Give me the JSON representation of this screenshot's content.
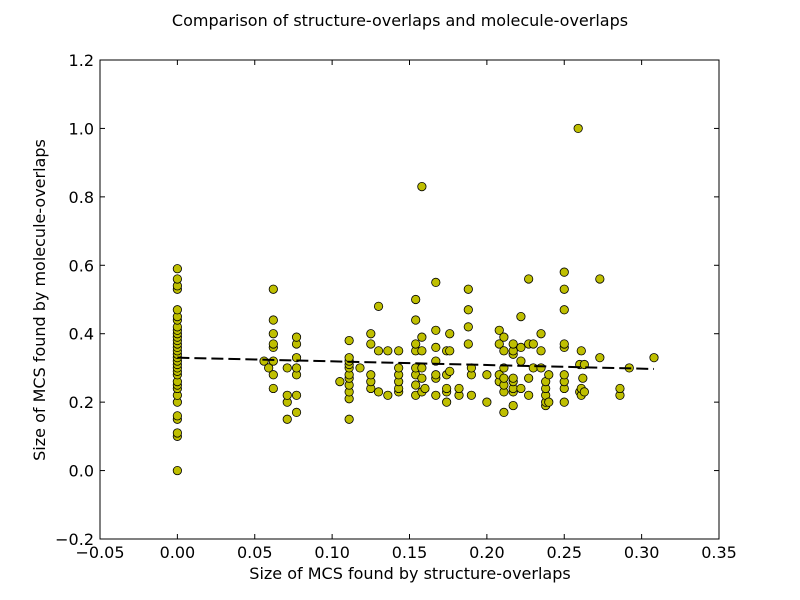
{
  "chart_data": {
    "type": "scatter",
    "title": "Comparison of structure-overlaps and molecule-overlaps",
    "xlabel": "Size of MCS found by structure-overlaps",
    "ylabel": "Size of MCS found by molecule-overlaps",
    "xlim": [
      -0.05,
      0.35
    ],
    "ylim": [
      -0.2,
      1.2
    ],
    "xticks": [
      -0.05,
      0.0,
      0.05,
      0.1,
      0.15,
      0.2,
      0.25,
      0.3,
      0.35
    ],
    "xtick_labels": [
      "−0.05",
      "0.00",
      "0.05",
      "0.10",
      "0.15",
      "0.20",
      "0.25",
      "0.30",
      "0.35"
    ],
    "yticks": [
      -0.2,
      0.0,
      0.2,
      0.4,
      0.6,
      0.8,
      1.0,
      1.2
    ],
    "ytick_labels": [
      "−0.2",
      "0.0",
      "0.2",
      "0.4",
      "0.6",
      "0.8",
      "1.0",
      "1.2"
    ],
    "grid": false,
    "colors": {
      "marker_fill": "#bfbf00",
      "marker_edge": "#000000",
      "trend_line": "#000000"
    },
    "series": [
      {
        "points": [
          [
            0.0,
            0.0
          ],
          [
            0.0,
            0.1
          ],
          [
            0.0,
            0.11
          ],
          [
            0.0,
            0.15
          ],
          [
            0.0,
            0.16
          ],
          [
            0.0,
            0.2
          ],
          [
            0.0,
            0.22
          ],
          [
            0.0,
            0.24
          ],
          [
            0.0,
            0.25
          ],
          [
            0.0,
            0.26
          ],
          [
            0.0,
            0.28
          ],
          [
            0.0,
            0.29
          ],
          [
            0.0,
            0.3
          ],
          [
            0.0,
            0.31
          ],
          [
            0.0,
            0.32
          ],
          [
            0.0,
            0.33
          ],
          [
            0.0,
            0.34
          ],
          [
            0.0,
            0.35
          ],
          [
            0.0,
            0.36
          ],
          [
            0.0,
            0.37
          ],
          [
            0.0,
            0.38
          ],
          [
            0.0,
            0.39
          ],
          [
            0.0,
            0.4
          ],
          [
            0.0,
            0.41
          ],
          [
            0.0,
            0.42
          ],
          [
            0.0,
            0.44
          ],
          [
            0.0,
            0.45
          ],
          [
            0.0,
            0.47
          ],
          [
            0.0,
            0.53
          ],
          [
            0.0,
            0.54
          ],
          [
            0.0,
            0.56
          ],
          [
            0.0,
            0.59
          ],
          [
            0.056,
            0.32
          ],
          [
            0.059,
            0.3
          ],
          [
            0.062,
            0.24
          ],
          [
            0.062,
            0.28
          ],
          [
            0.062,
            0.32
          ],
          [
            0.062,
            0.36
          ],
          [
            0.062,
            0.37
          ],
          [
            0.062,
            0.4
          ],
          [
            0.062,
            0.44
          ],
          [
            0.062,
            0.53
          ],
          [
            0.071,
            0.15
          ],
          [
            0.071,
            0.2
          ],
          [
            0.071,
            0.22
          ],
          [
            0.071,
            0.3
          ],
          [
            0.077,
            0.17
          ],
          [
            0.077,
            0.22
          ],
          [
            0.077,
            0.28
          ],
          [
            0.077,
            0.3
          ],
          [
            0.077,
            0.33
          ],
          [
            0.077,
            0.37
          ],
          [
            0.077,
            0.39
          ],
          [
            0.105,
            0.26
          ],
          [
            0.111,
            0.15
          ],
          [
            0.111,
            0.21
          ],
          [
            0.111,
            0.23
          ],
          [
            0.111,
            0.25
          ],
          [
            0.111,
            0.27
          ],
          [
            0.111,
            0.28
          ],
          [
            0.111,
            0.3
          ],
          [
            0.111,
            0.31
          ],
          [
            0.111,
            0.32
          ],
          [
            0.111,
            0.33
          ],
          [
            0.111,
            0.38
          ],
          [
            0.118,
            0.3
          ],
          [
            0.125,
            0.24
          ],
          [
            0.125,
            0.26
          ],
          [
            0.125,
            0.28
          ],
          [
            0.125,
            0.37
          ],
          [
            0.125,
            0.4
          ],
          [
            0.13,
            0.23
          ],
          [
            0.13,
            0.35
          ],
          [
            0.13,
            0.48
          ],
          [
            0.136,
            0.22
          ],
          [
            0.136,
            0.35
          ],
          [
            0.143,
            0.23
          ],
          [
            0.143,
            0.24
          ],
          [
            0.143,
            0.26
          ],
          [
            0.143,
            0.28
          ],
          [
            0.143,
            0.3
          ],
          [
            0.143,
            0.35
          ],
          [
            0.154,
            0.22
          ],
          [
            0.154,
            0.25
          ],
          [
            0.154,
            0.28
          ],
          [
            0.154,
            0.3
          ],
          [
            0.154,
            0.35
          ],
          [
            0.154,
            0.37
          ],
          [
            0.154,
            0.44
          ],
          [
            0.154,
            0.5
          ],
          [
            0.158,
            0.23
          ],
          [
            0.158,
            0.27
          ],
          [
            0.158,
            0.3
          ],
          [
            0.158,
            0.35
          ],
          [
            0.158,
            0.39
          ],
          [
            0.158,
            0.83
          ],
          [
            0.16,
            0.24
          ],
          [
            0.167,
            0.22
          ],
          [
            0.167,
            0.27
          ],
          [
            0.167,
            0.28
          ],
          [
            0.167,
            0.32
          ],
          [
            0.167,
            0.36
          ],
          [
            0.167,
            0.41
          ],
          [
            0.167,
            0.55
          ],
          [
            0.174,
            0.2
          ],
          [
            0.174,
            0.23
          ],
          [
            0.174,
            0.24
          ],
          [
            0.174,
            0.28
          ],
          [
            0.174,
            0.35
          ],
          [
            0.176,
            0.29
          ],
          [
            0.176,
            0.35
          ],
          [
            0.176,
            0.4
          ],
          [
            0.182,
            0.22
          ],
          [
            0.182,
            0.24
          ],
          [
            0.188,
            0.37
          ],
          [
            0.188,
            0.42
          ],
          [
            0.188,
            0.47
          ],
          [
            0.188,
            0.53
          ],
          [
            0.19,
            0.22
          ],
          [
            0.19,
            0.28
          ],
          [
            0.19,
            0.3
          ],
          [
            0.2,
            0.2
          ],
          [
            0.2,
            0.28
          ],
          [
            0.208,
            0.26
          ],
          [
            0.208,
            0.28
          ],
          [
            0.208,
            0.37
          ],
          [
            0.208,
            0.41
          ],
          [
            0.211,
            0.17
          ],
          [
            0.211,
            0.23
          ],
          [
            0.211,
            0.25
          ],
          [
            0.211,
            0.27
          ],
          [
            0.211,
            0.3
          ],
          [
            0.211,
            0.35
          ],
          [
            0.211,
            0.39
          ],
          [
            0.217,
            0.19
          ],
          [
            0.217,
            0.23
          ],
          [
            0.217,
            0.24
          ],
          [
            0.217,
            0.26
          ],
          [
            0.217,
            0.27
          ],
          [
            0.217,
            0.34
          ],
          [
            0.217,
            0.35
          ],
          [
            0.217,
            0.37
          ],
          [
            0.222,
            0.24
          ],
          [
            0.222,
            0.32
          ],
          [
            0.222,
            0.36
          ],
          [
            0.222,
            0.45
          ],
          [
            0.227,
            0.22
          ],
          [
            0.227,
            0.27
          ],
          [
            0.227,
            0.37
          ],
          [
            0.227,
            0.56
          ],
          [
            0.23,
            0.3
          ],
          [
            0.23,
            0.37
          ],
          [
            0.235,
            0.3
          ],
          [
            0.235,
            0.35
          ],
          [
            0.235,
            0.4
          ],
          [
            0.238,
            0.19
          ],
          [
            0.238,
            0.2
          ],
          [
            0.238,
            0.22
          ],
          [
            0.238,
            0.24
          ],
          [
            0.238,
            0.26
          ],
          [
            0.24,
            0.2
          ],
          [
            0.24,
            0.28
          ],
          [
            0.25,
            0.2
          ],
          [
            0.25,
            0.24
          ],
          [
            0.25,
            0.26
          ],
          [
            0.25,
            0.28
          ],
          [
            0.25,
            0.36
          ],
          [
            0.25,
            0.37
          ],
          [
            0.25,
            0.47
          ],
          [
            0.25,
            0.53
          ],
          [
            0.25,
            0.58
          ],
          [
            0.259,
            1.0
          ],
          [
            0.26,
            0.23
          ],
          [
            0.26,
            0.31
          ],
          [
            0.261,
            0.22
          ],
          [
            0.261,
            0.24
          ],
          [
            0.261,
            0.35
          ],
          [
            0.262,
            0.27
          ],
          [
            0.263,
            0.23
          ],
          [
            0.263,
            0.31
          ],
          [
            0.273,
            0.33
          ],
          [
            0.273,
            0.56
          ],
          [
            0.286,
            0.22
          ],
          [
            0.286,
            0.24
          ],
          [
            0.292,
            0.3
          ],
          [
            0.308,
            0.33
          ]
        ]
      }
    ],
    "trend_line": {
      "style": "dashed",
      "from": [
        0.0,
        0.33
      ],
      "to": [
        0.308,
        0.297
      ]
    }
  }
}
